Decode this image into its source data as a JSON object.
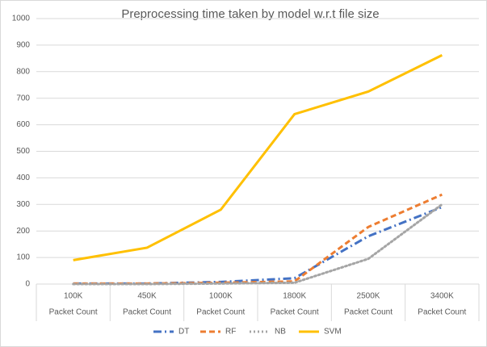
{
  "chart_data": {
    "type": "line",
    "title": "Preprocessing time taken by model w.r.t file size",
    "categories": [
      "100K",
      "450K",
      "1000K",
      "1800K",
      "2500K",
      "3400K"
    ],
    "category_groups": [
      "Packet Count",
      "Packet Count",
      "Packet Count",
      "Packet Count",
      "Packet Count",
      "Packet Count"
    ],
    "series": [
      {
        "name": "DT",
        "color": "#4472c4",
        "dash": "long-dash-dot",
        "values": [
          2,
          2,
          8,
          22,
          180,
          290
        ]
      },
      {
        "name": "RF",
        "color": "#ed7d31",
        "dash": "dash",
        "values": [
          2,
          2,
          5,
          10,
          215,
          337
        ]
      },
      {
        "name": "NB",
        "color": "#a5a5a5",
        "dash": "dot",
        "values": [
          0,
          0,
          2,
          5,
          95,
          300
        ]
      },
      {
        "name": "SVM",
        "color": "#ffc000",
        "dash": "solid",
        "values": [
          90,
          137,
          280,
          640,
          725,
          862
        ]
      }
    ],
    "ylim": [
      0,
      1000
    ],
    "yticks": [
      0,
      100,
      200,
      300,
      400,
      500,
      600,
      700,
      800,
      900,
      1000
    ],
    "grid": true,
    "legend": "bottom"
  }
}
